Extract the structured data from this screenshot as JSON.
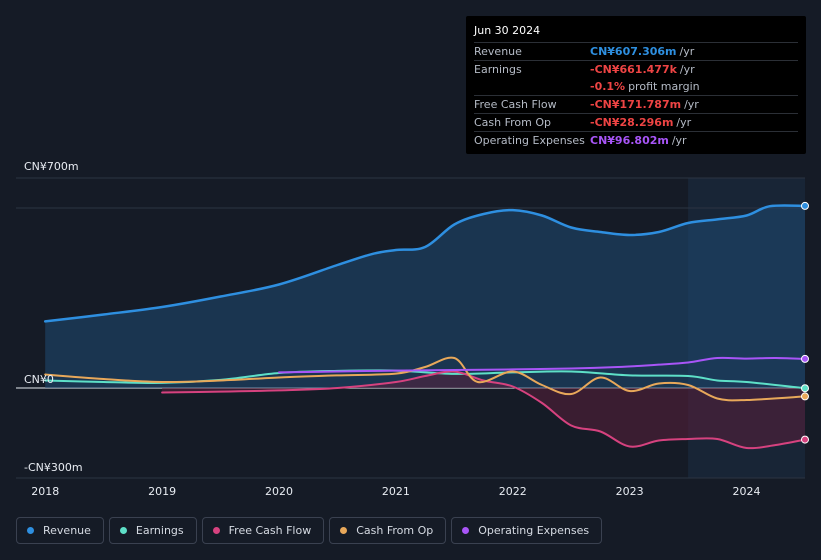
{
  "tooltip": {
    "date": "Jun 30 2024",
    "rows": [
      {
        "label": "Revenue",
        "value": "CN¥607.306m",
        "unit": "/yr",
        "color": "#2e8fe0"
      },
      {
        "label": "Earnings",
        "value": "-CN¥661.477k",
        "unit": "/yr",
        "color": "#ee4444"
      },
      {
        "label": "",
        "value": "-0.1%",
        "unit": "profit margin",
        "color": "#ee4444"
      },
      {
        "label": "Free Cash Flow",
        "value": "-CN¥171.787m",
        "unit": "/yr",
        "color": "#ee4444"
      },
      {
        "label": "Cash From Op",
        "value": "-CN¥28.296m",
        "unit": "/yr",
        "color": "#ee4444"
      },
      {
        "label": "Operating Expenses",
        "value": "CN¥96.802m",
        "unit": "/yr",
        "color": "#a855f7"
      }
    ]
  },
  "legend": [
    {
      "label": "Revenue",
      "color": "#2e8fe0"
    },
    {
      "label": "Earnings",
      "color": "#5ee0c8"
    },
    {
      "label": "Free Cash Flow",
      "color": "#d6427f"
    },
    {
      "label": "Cash From Op",
      "color": "#e8a85a"
    },
    {
      "label": "Operating Expenses",
      "color": "#a855f7"
    }
  ],
  "chart_data": {
    "type": "line",
    "title": "",
    "xlabel": "",
    "ylabel": "",
    "ylim": [
      -300,
      700
    ],
    "xlim": [
      2017.75,
      2024.5
    ],
    "y_tick_labels": [
      {
        "value": 700,
        "label": "CN¥700m"
      },
      {
        "value": 0,
        "label": "CN¥0"
      },
      {
        "value": -300,
        "label": "-CN¥300m"
      }
    ],
    "x_ticks": [
      2018,
      2019,
      2020,
      2021,
      2022,
      2023,
      2024
    ],
    "x_tick_labels": [
      "2018",
      "2019",
      "2020",
      "2021",
      "2022",
      "2023",
      "2024"
    ],
    "forecast_start": 2023.5,
    "series": [
      {
        "name": "Revenue",
        "color": "#2e8fe0",
        "fill": true,
        "x": [
          2018.0,
          2018.5,
          2019.0,
          2019.5,
          2020.0,
          2020.5,
          2020.8,
          2021.0,
          2021.25,
          2021.5,
          2021.75,
          2022.0,
          2022.25,
          2022.5,
          2022.75,
          2023.0,
          2023.25,
          2023.5,
          2023.75,
          2024.0,
          2024.2,
          2024.5
        ],
        "values": [
          222,
          245,
          270,
          305,
          345,
          410,
          447,
          460,
          470,
          545,
          580,
          593,
          575,
          535,
          520,
          510,
          520,
          550,
          562,
          575,
          606,
          607
        ]
      },
      {
        "name": "Earnings",
        "color": "#5ee0c8",
        "fill": false,
        "x": [
          2018.0,
          2018.5,
          2019.0,
          2019.5,
          2020.0,
          2020.5,
          2021.0,
          2021.5,
          2022.0,
          2022.5,
          2023.0,
          2023.5,
          2023.75,
          2024.0,
          2024.5
        ],
        "values": [
          25,
          20,
          17,
          27,
          50,
          57,
          58,
          47,
          52,
          55,
          42,
          40,
          25,
          20,
          -0.7
        ]
      },
      {
        "name": "Free Cash Flow",
        "color": "#d6427f",
        "fill": true,
        "x": [
          2019.0,
          2019.5,
          2020.0,
          2020.5,
          2021.0,
          2021.25,
          2021.5,
          2021.75,
          2022.0,
          2022.25,
          2022.5,
          2022.75,
          2023.0,
          2023.25,
          2023.5,
          2023.75,
          2024.0,
          2024.25,
          2024.5
        ],
        "values": [
          -15,
          -12,
          -8,
          0,
          20,
          40,
          55,
          25,
          5,
          -50,
          -125,
          -145,
          -195,
          -175,
          -170,
          -170,
          -200,
          -190,
          -172
        ]
      },
      {
        "name": "Cash From Op",
        "color": "#e8a85a",
        "fill": false,
        "x": [
          2018.0,
          2018.5,
          2019.0,
          2019.5,
          2020.0,
          2020.5,
          2021.0,
          2021.25,
          2021.5,
          2021.7,
          2022.0,
          2022.25,
          2022.5,
          2022.75,
          2023.0,
          2023.25,
          2023.5,
          2023.75,
          2024.0,
          2024.5
        ],
        "values": [
          45,
          30,
          20,
          25,
          35,
          42,
          48,
          70,
          100,
          20,
          55,
          10,
          -20,
          35,
          -10,
          15,
          10,
          -35,
          -40,
          -28
        ]
      },
      {
        "name": "Operating Expenses",
        "color": "#a855f7",
        "fill": false,
        "x": [
          2020.0,
          2020.5,
          2021.0,
          2021.5,
          2022.0,
          2022.5,
          2022.9,
          2023.25,
          2023.5,
          2023.75,
          2024.0,
          2024.25,
          2024.5
        ],
        "values": [
          52,
          55,
          58,
          60,
          62,
          65,
          70,
          78,
          85,
          100,
          98,
          100,
          97
        ]
      }
    ]
  }
}
